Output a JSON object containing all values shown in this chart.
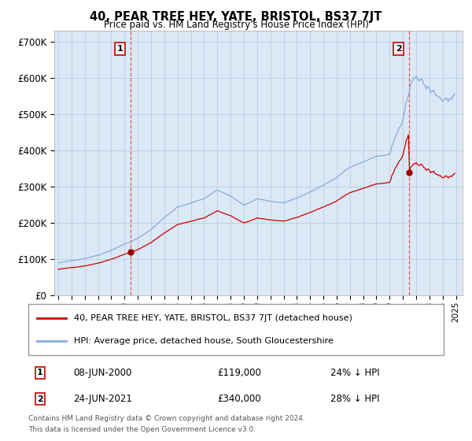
{
  "title": "40, PEAR TREE HEY, YATE, BRISTOL, BS37 7JT",
  "subtitle": "Price paid vs. HM Land Registry's House Price Index (HPI)",
  "ylabel_ticks": [
    "£0",
    "£100K",
    "£200K",
    "£300K",
    "£400K",
    "£500K",
    "£600K",
    "£700K"
  ],
  "ytick_values": [
    0,
    100000,
    200000,
    300000,
    400000,
    500000,
    600000,
    700000
  ],
  "ylim": [
    0,
    730000
  ],
  "xlim_start": 1994.7,
  "xlim_end": 2025.5,
  "transaction1": {
    "year": 2000.44,
    "price": 119000,
    "label": "1",
    "date": "08-JUN-2000",
    "pct": "24% ↓ HPI"
  },
  "transaction2": {
    "year": 2021.48,
    "price": 340000,
    "label": "2",
    "date": "24-JUN-2021",
    "pct": "28% ↓ HPI"
  },
  "legend_entry1": "40, PEAR TREE HEY, YATE, BRISTOL, BS37 7JT (detached house)",
  "legend_entry2": "HPI: Average price, detached house, South Gloucestershire",
  "footer1": "Contains HM Land Registry data © Crown copyright and database right 2024.",
  "footer2": "This data is licensed under the Open Government Licence v3.0.",
  "price_line_color": "#cc0000",
  "hpi_line_color": "#88aadd",
  "vline_color": "#dd4444",
  "background_color": "#dce8f5",
  "grid_color": "#b8cfe0"
}
